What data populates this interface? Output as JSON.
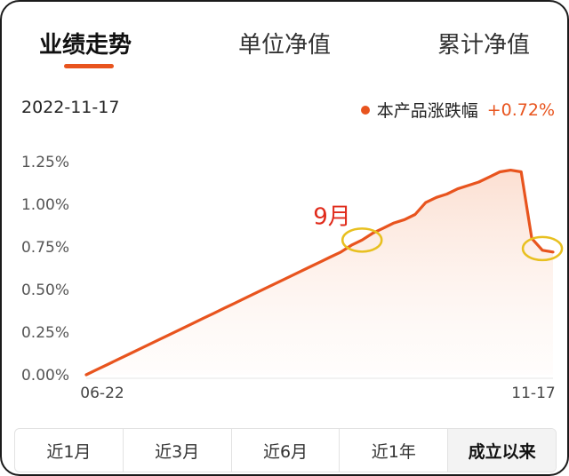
{
  "tabs": [
    {
      "label": "业绩走势"
    },
    {
      "label": "单位净值"
    },
    {
      "label": "累计净值"
    }
  ],
  "date": "2022-11-17",
  "legend": {
    "label": "本产品涨跌幅",
    "value": "+0.72%",
    "color": "#e8541e"
  },
  "periods": [
    {
      "label": "近1月"
    },
    {
      "label": "近3月"
    },
    {
      "label": "近6月"
    },
    {
      "label": "近1年"
    },
    {
      "label": "成立以来"
    }
  ],
  "active_period": "成立以来",
  "chart_data": {
    "type": "area",
    "x_start_label": "06-22",
    "x_end_label": "11-17",
    "xticks": [
      "06-22",
      "11-17"
    ],
    "yticks": [
      "0.00%",
      "0.25%",
      "0.50%",
      "0.75%",
      "1.00%",
      "1.25%"
    ],
    "ylim": [
      0,
      1.25
    ],
    "grid": false,
    "legend_position": "top-right",
    "series": [
      {
        "name": "本产品涨跌幅",
        "color": "#e8541e",
        "values": [
          0.0,
          0.03,
          0.06,
          0.09,
          0.12,
          0.15,
          0.18,
          0.21,
          0.24,
          0.27,
          0.3,
          0.33,
          0.36,
          0.39,
          0.42,
          0.45,
          0.48,
          0.51,
          0.54,
          0.57,
          0.6,
          0.63,
          0.66,
          0.69,
          0.72,
          0.76,
          0.79,
          0.83,
          0.86,
          0.89,
          0.91,
          0.94,
          1.01,
          1.04,
          1.06,
          1.09,
          1.11,
          1.13,
          1.16,
          1.19,
          1.2,
          1.19,
          0.8,
          0.73,
          0.72
        ]
      }
    ],
    "annotations": [
      {
        "text": "9月",
        "color": "#e02a1a",
        "x_index": 26,
        "y": 0.79
      },
      {
        "text": "",
        "color": "#e8c020",
        "x_index": 43,
        "y": 0.74
      }
    ]
  }
}
